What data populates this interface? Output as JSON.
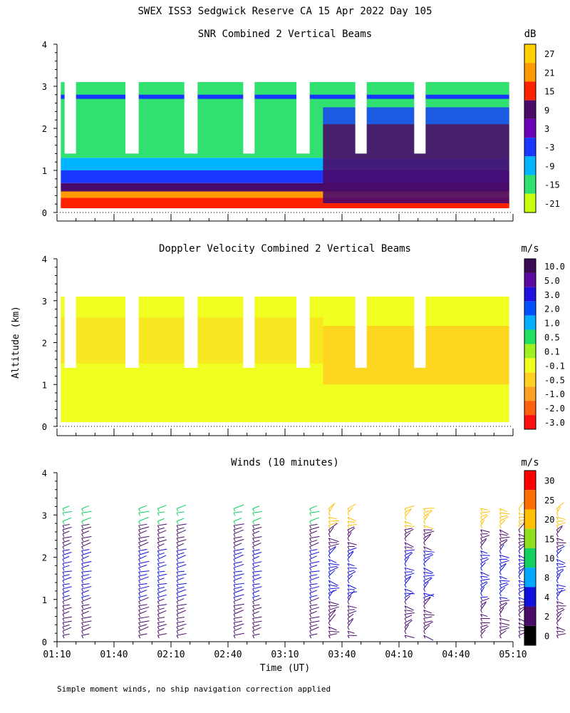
{
  "title": "SWEX ISS3 Sedgwick Reserve CA  15 Apr 2022 Day 105",
  "footnote": "Simple moment winds, no ship navigation correction applied",
  "y_axis_label": "Altitude (km)",
  "x_axis_label": "Time (UT)",
  "chart_data": [
    {
      "type": "heatmap",
      "title": "SNR Combined 2 Vertical Beams",
      "unit": "dB",
      "ylim": [
        0,
        4
      ],
      "yticks": [
        "0",
        "1",
        "2",
        "3",
        "4"
      ],
      "colorbar": {
        "labels": [
          "27",
          "21",
          "15",
          "9",
          "3",
          "-3",
          "-9",
          "-15",
          "-21"
        ],
        "colors": [
          "#ffd000",
          "#ff9900",
          "#ff2200",
          "#4a0a6a",
          "#6a00b8",
          "#1838ff",
          "#00b4ff",
          "#30e070",
          "#c8ff10"
        ]
      },
      "layers": [
        {
          "from_km": 0.1,
          "to_km": 0.35,
          "level": "15"
        },
        {
          "from_km": 0.35,
          "to_km": 0.5,
          "level": "21"
        },
        {
          "from_km": 0.5,
          "to_km": 0.7,
          "level": "9"
        },
        {
          "from_km": 0.7,
          "to_km": 1.0,
          "level": "-3"
        },
        {
          "from_km": 1.0,
          "to_km": 1.3,
          "level": "-9"
        },
        {
          "from_km": 1.3,
          "to_km": 3.1,
          "level": "-15"
        },
        {
          "from_km": 2.7,
          "to_km": 2.8,
          "level": "-3"
        }
      ]
    },
    {
      "type": "heatmap",
      "title": "Doppler Velocity Combined 2 Vertical Beams",
      "unit": "m/s",
      "ylim": [
        0,
        4
      ],
      "yticks": [
        "0",
        "1",
        "2",
        "3",
        "4"
      ],
      "colorbar": {
        "labels": [
          "10.0",
          "5.0",
          "3.0",
          "2.0",
          "1.0",
          "0.5",
          "0.1",
          "-0.1",
          "-0.5",
          "-1.0",
          "-2.0",
          "-3.0"
        ],
        "colors": [
          "#3a0a55",
          "#5a0aa0",
          "#2010e0",
          "#0050ff",
          "#00b0ff",
          "#20e060",
          "#a0f020",
          "#f0ff20",
          "#ffd020",
          "#ffa020",
          "#ff6010",
          "#ff1010"
        ]
      },
      "layers": [
        {
          "from_km": 0.1,
          "to_km": 1.4,
          "level": "-0.1"
        },
        {
          "from_km": 1.4,
          "to_km": 3.1,
          "level": "-0.1"
        }
      ]
    },
    {
      "type": "scatter",
      "title": "Winds (10 minutes)",
      "unit": "m/s",
      "ylim": [
        0,
        4
      ],
      "yticks": [
        "0",
        "1",
        "2",
        "3",
        "4"
      ],
      "xticks": [
        "01:10",
        "01:40",
        "02:10",
        "02:40",
        "03:10",
        "03:40",
        "04:10",
        "04:40",
        "05:10"
      ],
      "colorbar": {
        "labels": [
          "30",
          "25",
          "20",
          "15",
          "10",
          "8",
          "4",
          "2",
          "0"
        ],
        "colors": [
          "#ff0000",
          "#ff7000",
          "#ffc000",
          "#90e020",
          "#10d060",
          "#00a8ff",
          "#1010e0",
          "#4a0a6a",
          "#000000"
        ]
      },
      "profile_times_min": [
        0,
        10,
        40,
        50,
        60,
        90,
        100,
        130,
        140,
        150,
        180,
        190,
        220,
        230,
        240,
        260,
        270,
        280,
        290,
        300,
        310,
        320,
        330,
        340,
        350,
        360,
        370,
        380,
        390
      ]
    }
  ]
}
